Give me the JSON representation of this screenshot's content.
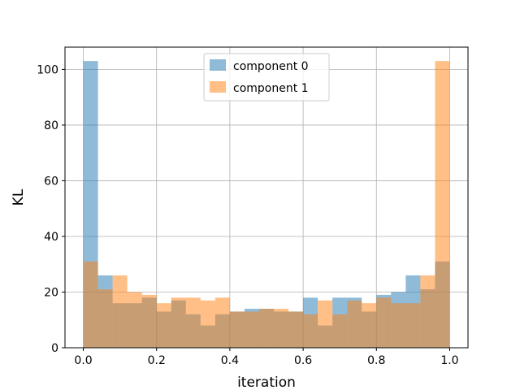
{
  "chart_data": {
    "type": "bar",
    "subtype": "overlaid-histogram",
    "title": "",
    "xlabel": "iteration",
    "ylabel": "KL",
    "xlim": [
      -0.05,
      1.05
    ],
    "ylim": [
      0,
      108
    ],
    "xticks": [
      "0.0",
      "0.2",
      "0.4",
      "0.6",
      "0.8",
      "1.0"
    ],
    "yticks": [
      "0",
      "20",
      "40",
      "60",
      "80",
      "100"
    ],
    "grid": true,
    "legend_position": "top-center",
    "bin_edges": [
      0.0,
      0.04,
      0.08,
      0.12,
      0.16,
      0.2,
      0.24,
      0.28,
      0.32,
      0.36,
      0.4,
      0.44,
      0.48,
      0.52,
      0.56,
      0.6,
      0.64,
      0.68,
      0.72,
      0.76,
      0.8,
      0.84,
      0.88,
      0.92,
      0.96,
      1.0
    ],
    "series": [
      {
        "name": "component 0",
        "color": "#1f77b4",
        "alpha": 0.5,
        "values": [
          103,
          26,
          16,
          16,
          18,
          13,
          17,
          12,
          8,
          12,
          13,
          14,
          14,
          13,
          13,
          18,
          8,
          18,
          18,
          13,
          19,
          20,
          26,
          21,
          31
        ]
      },
      {
        "name": "component 1",
        "color": "#ff7f0e",
        "alpha": 0.5,
        "values": [
          31,
          21,
          26,
          20,
          19,
          16,
          18,
          18,
          17,
          18,
          13,
          13,
          14,
          14,
          13,
          12,
          17,
          12,
          17,
          16,
          18,
          16,
          16,
          26,
          103
        ]
      }
    ]
  }
}
